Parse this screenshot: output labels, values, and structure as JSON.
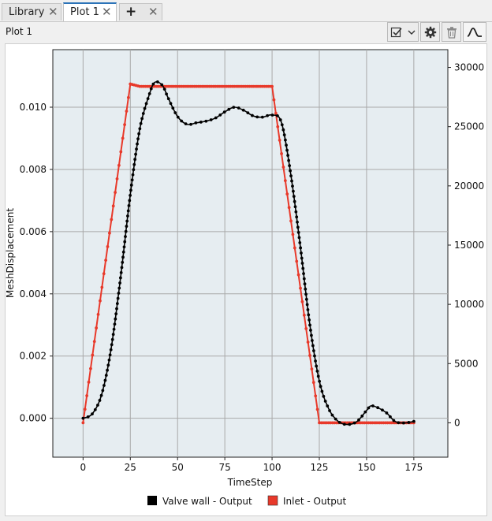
{
  "tabs": [
    {
      "label": "Library",
      "active": false
    },
    {
      "label": "Plot 1",
      "active": true
    },
    {
      "label": "+",
      "active": false
    }
  ],
  "plot_title": "Plot 1",
  "toolbar": {
    "icons": [
      "checkbox-icon",
      "chevron-down-icon",
      "gear-icon",
      "trash-icon",
      "curve-icon"
    ]
  },
  "chart_data": {
    "type": "line",
    "title": "",
    "xlabel": "TimeStep",
    "ylabel": "MeshDisplacement",
    "ylabel_right": "",
    "xlim": [
      -16,
      193
    ],
    "ylim": [
      -0.00125,
      0.01185
    ],
    "ylim_right": [
      -2900,
      31500
    ],
    "x_ticks": [
      0,
      25,
      50,
      75,
      100,
      125,
      150,
      175
    ],
    "y_ticks": [
      0.0,
      0.002,
      0.004,
      0.006,
      0.008,
      0.01
    ],
    "y_tick_labels": [
      "0.000",
      "0.002",
      "0.004",
      "0.006",
      "0.008",
      "0.010"
    ],
    "y_right_ticks": [
      0,
      5000,
      10000,
      15000,
      20000,
      25000,
      30000
    ],
    "grid": true,
    "legend_position": "bottom-center",
    "series": [
      {
        "name": "Valve wall - Output",
        "axis": "left",
        "color": "#000000",
        "x": [
          0,
          5,
          10,
          15,
          20,
          25,
          30,
          35,
          38,
          42,
          45,
          50,
          55,
          60,
          65,
          70,
          75,
          80,
          85,
          90,
          95,
          100,
          105,
          110,
          115,
          120,
          125,
          130,
          135,
          140,
          145,
          150,
          153,
          160,
          165,
          170,
          175
        ],
        "y": [
          0.0,
          0.00015,
          0.0008,
          0.0023,
          0.0046,
          0.0072,
          0.0093,
          0.0104,
          0.0108,
          0.0107,
          0.0103,
          0.0097,
          0.00945,
          0.0095,
          0.00955,
          0.00965,
          0.00985,
          0.01,
          0.0099,
          0.00972,
          0.00968,
          0.00975,
          0.0095,
          0.0078,
          0.0055,
          0.003,
          0.0012,
          0.0003,
          -0.0001,
          -0.0002,
          -0.0001,
          0.00025,
          0.0004,
          0.0002,
          -0.0001,
          -0.00015,
          -0.0001
        ]
      },
      {
        "name": "Inlet - Output",
        "axis": "right",
        "color": "#e8392a",
        "x": [
          0,
          25,
          30,
          100,
          125,
          175
        ],
        "y": [
          0,
          28600,
          28400,
          28400,
          0,
          0
        ]
      }
    ]
  }
}
